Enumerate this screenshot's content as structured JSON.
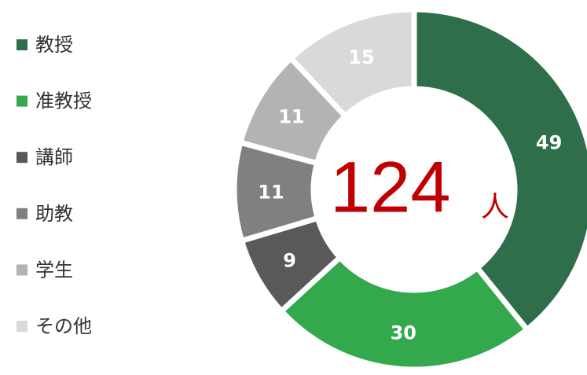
{
  "chart_data": {
    "type": "donut",
    "categories": [
      "教授",
      "准教授",
      "講師",
      "助教",
      "学生",
      "その他"
    ],
    "values": [
      49,
      30,
      9,
      11,
      11,
      15
    ],
    "colors": [
      "#2e6e4a",
      "#34a84c",
      "#595959",
      "#808080",
      "#b3b3b3",
      "#d9d9d9"
    ],
    "center_value": 124,
    "center_unit": "人"
  }
}
